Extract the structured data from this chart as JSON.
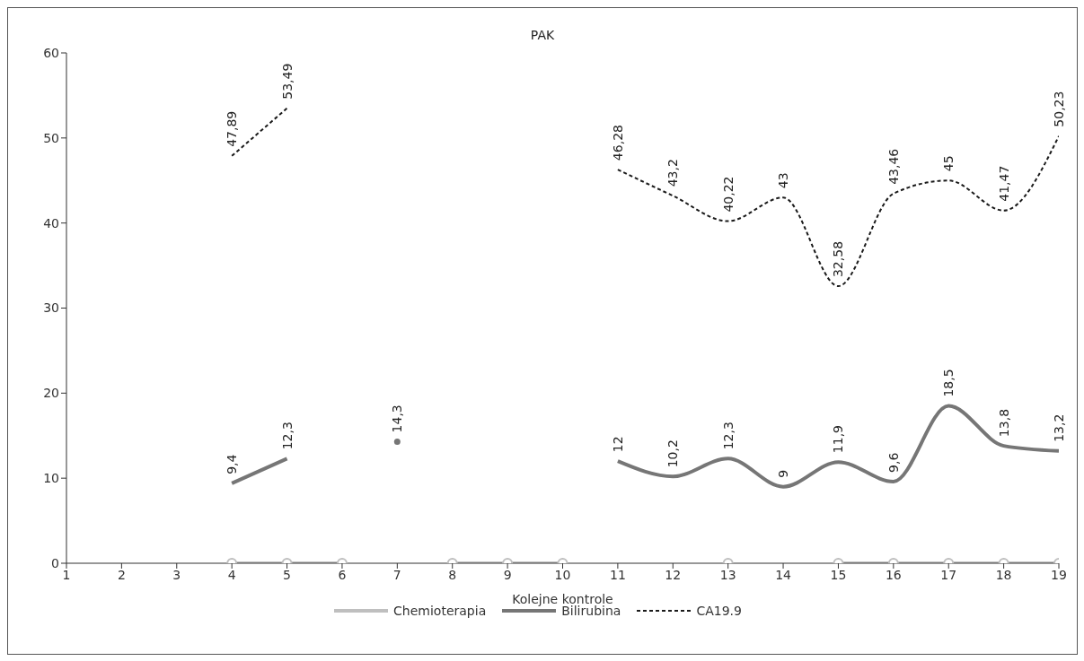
{
  "chart_data": {
    "type": "line",
    "title": "PAK",
    "xlabel": "Kolejne kontrole",
    "x": [
      4,
      5,
      6,
      7,
      8,
      9,
      10,
      11,
      12,
      13,
      14,
      15,
      16,
      17,
      18,
      19
    ],
    "xlim": [
      1,
      19
    ],
    "xticks": [
      1,
      2,
      3,
      4,
      5,
      6,
      7,
      8,
      9,
      10,
      11,
      12,
      13,
      14,
      15,
      16,
      17,
      18,
      19
    ],
    "ylim": [
      0,
      60
    ],
    "yticks": [
      0,
      10,
      20,
      30,
      40,
      50,
      60
    ],
    "legend": "bottom",
    "series": [
      {
        "name": "Chemioterapia",
        "color": "#bfbfbf",
        "marker": "circle",
        "line_style": "solid",
        "values": [
          0,
          0,
          0,
          null,
          0,
          0,
          0,
          null,
          null,
          0,
          null,
          0,
          0,
          0,
          0,
          0
        ]
      },
      {
        "name": "Bilirubina",
        "color": "#767676",
        "marker": "none",
        "line_style": "solid",
        "values": [
          9.4,
          12.3,
          null,
          14.3,
          null,
          null,
          null,
          12,
          10.2,
          12.3,
          9,
          11.9,
          9.6,
          18.5,
          13.8,
          13.2
        ],
        "value_labels": [
          "9,4",
          "12,3",
          null,
          "14,3",
          null,
          null,
          null,
          "12",
          "10,2",
          "12,3",
          "9",
          "11,9",
          "9,6",
          "18,5",
          "13,8",
          "13,2"
        ]
      },
      {
        "name": "CA19.9",
        "color": "#1a1a1a",
        "marker": "none",
        "line_style": "dashed",
        "values": [
          47.89,
          53.49,
          null,
          null,
          null,
          null,
          null,
          46.28,
          43.2,
          40.22,
          43,
          32.58,
          43.46,
          45,
          41.47,
          50.23
        ],
        "value_labels": [
          "47,89",
          "53,49",
          null,
          null,
          null,
          null,
          null,
          "46,28",
          "43,2",
          "40,22",
          "43",
          "32,58",
          "43,46",
          "45",
          "41,47",
          "50,23"
        ]
      }
    ]
  }
}
